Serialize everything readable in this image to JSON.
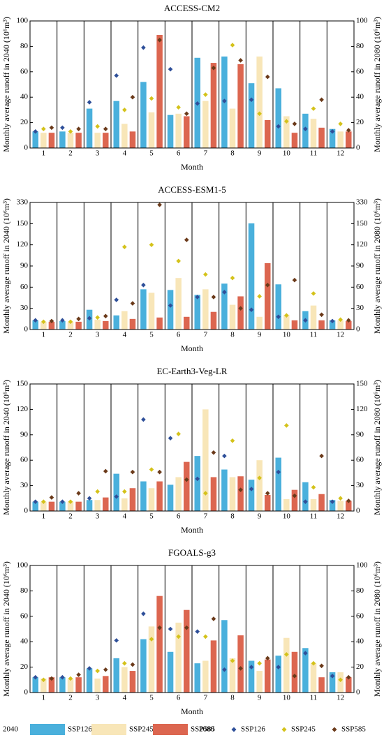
{
  "legend": {
    "groups": [
      {
        "label": "2040",
        "mark": "bar",
        "items": [
          {
            "name": "SSP126",
            "color": "#4ab0dc"
          },
          {
            "name": "SSP245",
            "color": "#f8e6b8"
          },
          {
            "name": "SSP585",
            "color": "#dc6650"
          }
        ]
      },
      {
        "label": "2080",
        "mark": "diamond",
        "items": [
          {
            "name": "SSP126",
            "color": "#2e4f99"
          },
          {
            "name": "SSP245",
            "color": "#d4c21a"
          },
          {
            "name": "SSP585",
            "color": "#6b3a1a"
          }
        ]
      }
    ]
  },
  "chart_data": [
    {
      "type": "bar",
      "title": "ACCESS-CM2",
      "xlabel": "Month",
      "ylabel": "Monthly average runoff in 2040 (10⁶m³)",
      "y2label": "Monthly average runoff in 2080 (10⁶m³)",
      "categories": [
        "1",
        "2",
        "3",
        "4",
        "5",
        "6",
        "7",
        "8",
        "9",
        "10",
        "11",
        "12"
      ],
      "ylim": [
        0,
        100
      ],
      "yticks": [
        0,
        20,
        40,
        60,
        80,
        100
      ],
      "y2lim": [
        0,
        100
      ],
      "y2ticks": [
        0,
        20,
        40,
        60,
        80,
        100
      ],
      "series": [
        {
          "values": [
            13,
            13,
            31,
            37,
            52,
            26,
            71,
            72,
            51,
            47,
            27,
            15
          ]
        },
        {
          "values": [
            12,
            12,
            12,
            19,
            28,
            27,
            37,
            31,
            72,
            25,
            23,
            13
          ]
        },
        {
          "values": [
            12,
            12,
            12,
            13,
            89,
            25,
            67,
            66,
            22,
            12,
            16,
            13
          ]
        },
        {
          "axis": "y2",
          "values": [
            13,
            16,
            36,
            57,
            79,
            62,
            35,
            37,
            38,
            17,
            15,
            13
          ]
        },
        {
          "axis": "y2",
          "values": [
            15,
            13,
            17,
            30,
            39,
            32,
            42,
            81,
            27,
            21,
            31,
            19
          ]
        },
        {
          "axis": "y2",
          "values": [
            16,
            15,
            15,
            40,
            85,
            27,
            63,
            69,
            56,
            19,
            38,
            14
          ]
        }
      ]
    },
    {
      "type": "bar",
      "title": "ACCESS-ESM1-5",
      "xlabel": "Month",
      "ylabel": "Monthly average runoff in 2040 (10⁶m³)",
      "y2label": "Monthly average runoff in 2080 (10⁶m³)",
      "categories": [
        "1",
        "2",
        "3",
        "4",
        "5",
        "6",
        "7",
        "8",
        "9",
        "10",
        "11",
        "12"
      ],
      "ylim": [
        0,
        330
      ],
      "yticks": [
        0,
        30,
        60,
        90,
        120,
        150,
        330
      ],
      "y2lim": [
        0,
        330
      ],
      "y2ticks": [
        0,
        30,
        60,
        90,
        120,
        150,
        330
      ],
      "series": [
        {
          "values": [
            13,
            12,
            28,
            20,
            57,
            56,
            49,
            65,
            152,
            64,
            26,
            13
          ]
        },
        {
          "values": [
            11,
            11,
            14,
            26,
            52,
            73,
            57,
            35,
            18,
            21,
            34,
            13
          ]
        },
        {
          "values": [
            11,
            11,
            12,
            15,
            17,
            18,
            25,
            47,
            94,
            13,
            13,
            12
          ]
        },
        {
          "axis": "y2",
          "values": [
            13,
            13,
            16,
            42,
            63,
            34,
            46,
            53,
            28,
            18,
            13,
            12
          ]
        },
        {
          "axis": "y2",
          "values": [
            11,
            11,
            17,
            117,
            120,
            97,
            78,
            73,
            47,
            20,
            51,
            14
          ]
        },
        {
          "axis": "y2",
          "values": [
            12,
            15,
            19,
            37,
            310,
            127,
            46,
            30,
            63,
            70,
            21,
            13
          ]
        }
      ]
    },
    {
      "type": "bar",
      "title": "EC-Earth3-Veg-LR",
      "xlabel": "Month",
      "ylabel": "Monthly average runoff in 2040 (10⁶m³)",
      "y2label": "Monthly average runoff in 2080 (10⁶m³)",
      "categories": [
        "1",
        "2",
        "3",
        "4",
        "5",
        "6",
        "7",
        "8",
        "9",
        "10",
        "11",
        "12"
      ],
      "ylim": [
        0,
        150
      ],
      "yticks": [
        0,
        30,
        60,
        90,
        120,
        150
      ],
      "y2lim": [
        0,
        150
      ],
      "y2ticks": [
        0,
        30,
        60,
        90,
        120,
        150
      ],
      "series": [
        {
          "values": [
            11,
            11,
            13,
            44,
            35,
            31,
            65,
            49,
            37,
            63,
            34,
            13
          ]
        },
        {
          "values": [
            11,
            11,
            13,
            15,
            27,
            40,
            120,
            40,
            60,
            14,
            14,
            12
          ]
        },
        {
          "values": [
            11,
            11,
            16,
            27,
            35,
            58,
            40,
            41,
            19,
            25,
            20,
            12
          ]
        },
        {
          "axis": "y2",
          "values": [
            11,
            11,
            15,
            17,
            108,
            86,
            38,
            65,
            26,
            46,
            11,
            11
          ]
        },
        {
          "axis": "y2",
          "values": [
            11,
            11,
            23,
            23,
            49,
            91,
            21,
            83,
            39,
            101,
            28,
            15
          ]
        },
        {
          "axis": "y2",
          "values": [
            16,
            21,
            47,
            46,
            46,
            37,
            69,
            25,
            21,
            18,
            65,
            12
          ]
        }
      ]
    },
    {
      "type": "bar",
      "title": "FGOALS-g3",
      "xlabel": "Month",
      "ylabel": "Monthly average runoff in 2040 (10⁶m³)",
      "y2label": "Monthly average runoff in 2080 (10⁶m³)",
      "categories": [
        "1",
        "2",
        "3",
        "4",
        "5",
        "6",
        "7",
        "8",
        "9",
        "10",
        "11",
        "12"
      ],
      "ylim": [
        0,
        100
      ],
      "yticks": [
        0,
        20,
        40,
        60,
        80,
        100
      ],
      "y2lim": [
        0,
        100
      ],
      "y2ticks": [
        0,
        20,
        40,
        60,
        80,
        100
      ],
      "series": [
        {
          "values": [
            12,
            12,
            19,
            27,
            42,
            32,
            23,
            57,
            25,
            29,
            35,
            16
          ]
        },
        {
          "values": [
            11,
            11,
            11,
            20,
            52,
            55,
            25,
            27,
            17,
            43,
            23,
            16
          ]
        },
        {
          "values": [
            12,
            12,
            13,
            17,
            76,
            65,
            41,
            45,
            26,
            32,
            12,
            12
          ]
        },
        {
          "axis": "y2",
          "values": [
            12,
            12,
            19,
            41,
            62,
            50,
            48,
            18,
            20,
            20,
            31,
            13
          ]
        },
        {
          "axis": "y2",
          "values": [
            10,
            11,
            17,
            23,
            42,
            44,
            44,
            25,
            23,
            30,
            23,
            10
          ]
        },
        {
          "axis": "y2",
          "values": [
            11,
            14,
            18,
            22,
            51,
            51,
            58,
            19,
            27,
            13,
            21,
            12
          ]
        }
      ]
    }
  ]
}
